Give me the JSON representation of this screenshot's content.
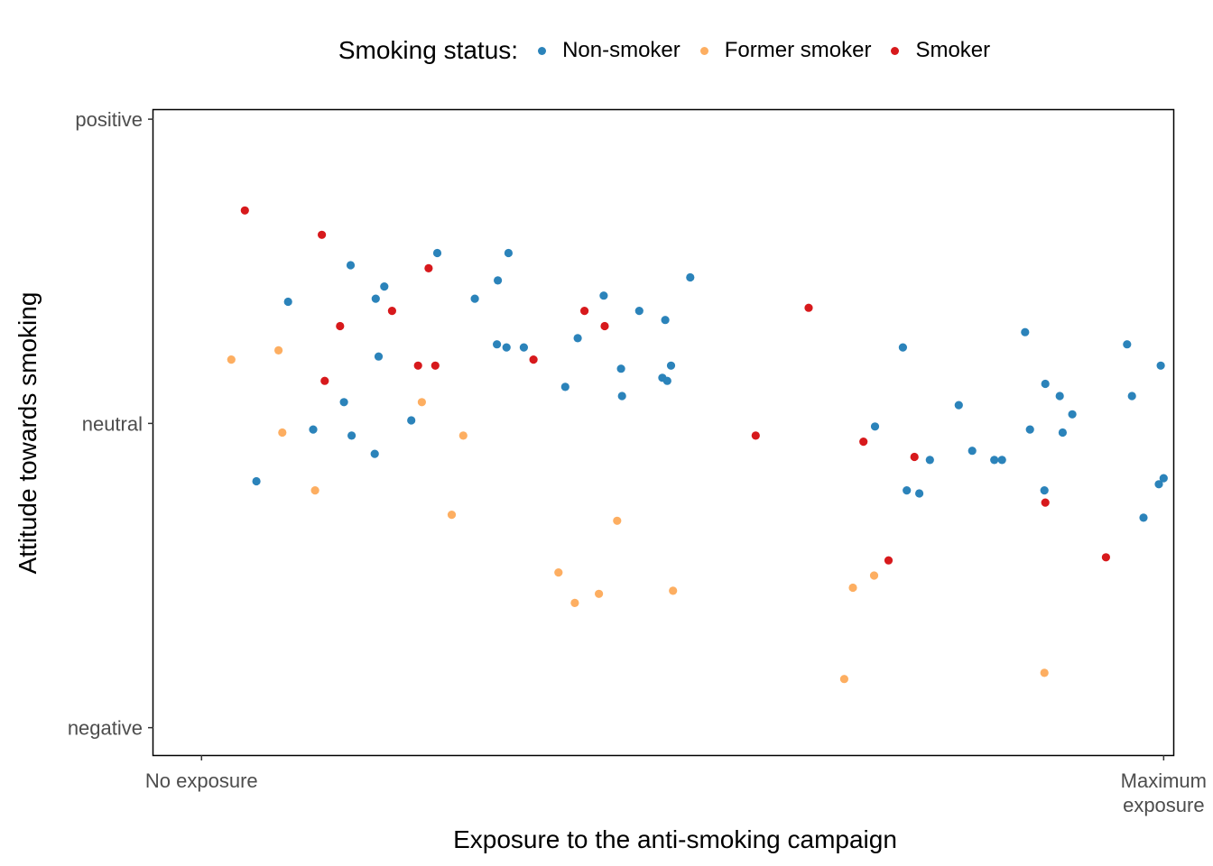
{
  "legend": {
    "title": "Smoking status:",
    "items": [
      {
        "label": "Non-smoker",
        "color": "#2b83ba"
      },
      {
        "label": "Former smoker",
        "color": "#fdae61"
      },
      {
        "label": "Smoker",
        "color": "#d7191c"
      }
    ]
  },
  "chart_data": {
    "type": "scatter",
    "title": "",
    "xlabel": "Exposure to the anti-smoking campaign",
    "ylabel": "Attitude towards smoking",
    "xlim": [
      -0.05,
      1.01
    ],
    "ylim": [
      -0.09,
      2.03
    ],
    "x_ticks": [
      {
        "value": 0,
        "label": "No exposure"
      },
      {
        "value": 1,
        "label": "Maximum\nexposure"
      }
    ],
    "y_ticks": [
      {
        "value": 0,
        "label": "negative"
      },
      {
        "value": 1,
        "label": "neutral"
      },
      {
        "value": 2,
        "label": "positive"
      }
    ],
    "grid": false,
    "legend_position": "top",
    "series": [
      {
        "name": "Non-smoker",
        "color": "#2b83ba",
        "points": [
          [
            0.057,
            0.81
          ],
          [
            0.09,
            1.4
          ],
          [
            0.116,
            0.98
          ],
          [
            0.148,
            1.07
          ],
          [
            0.155,
            1.52
          ],
          [
            0.156,
            0.96
          ],
          [
            0.18,
            0.9
          ],
          [
            0.181,
            1.41
          ],
          [
            0.184,
            1.22
          ],
          [
            0.19,
            1.45
          ],
          [
            0.218,
            1.01
          ],
          [
            0.245,
            1.56
          ],
          [
            0.284,
            1.41
          ],
          [
            0.307,
            1.26
          ],
          [
            0.308,
            1.47
          ],
          [
            0.317,
            1.25
          ],
          [
            0.319,
            1.56
          ],
          [
            0.335,
            1.25
          ],
          [
            0.378,
            1.12
          ],
          [
            0.391,
            1.28
          ],
          [
            0.418,
            1.42
          ],
          [
            0.436,
            1.18
          ],
          [
            0.437,
            1.09
          ],
          [
            0.455,
            1.37
          ],
          [
            0.479,
            1.15
          ],
          [
            0.482,
            1.34
          ],
          [
            0.484,
            1.14
          ],
          [
            0.488,
            1.19
          ],
          [
            0.508,
            1.48
          ],
          [
            0.7,
            0.99
          ],
          [
            0.729,
            1.25
          ],
          [
            0.733,
            0.78
          ],
          [
            0.746,
            0.77
          ],
          [
            0.757,
            0.88
          ],
          [
            0.787,
            1.06
          ],
          [
            0.801,
            0.91
          ],
          [
            0.824,
            0.88
          ],
          [
            0.832,
            0.88
          ],
          [
            0.856,
            1.3
          ],
          [
            0.861,
            0.98
          ],
          [
            0.876,
            0.78
          ],
          [
            0.877,
            1.13
          ],
          [
            0.892,
            1.09
          ],
          [
            0.895,
            0.97
          ],
          [
            0.905,
            1.03
          ],
          [
            0.962,
            1.26
          ],
          [
            0.967,
            1.09
          ],
          [
            0.979,
            0.69
          ],
          [
            0.995,
            0.8
          ],
          [
            0.997,
            1.19
          ],
          [
            1.0,
            0.82
          ]
        ]
      },
      {
        "name": "Former smoker",
        "color": "#fdae61",
        "points": [
          [
            0.031,
            1.21
          ],
          [
            0.08,
            1.24
          ],
          [
            0.084,
            0.97
          ],
          [
            0.118,
            0.78
          ],
          [
            0.229,
            1.07
          ],
          [
            0.26,
            0.7
          ],
          [
            0.272,
            0.96
          ],
          [
            0.371,
            0.51
          ],
          [
            0.388,
            0.41
          ],
          [
            0.413,
            0.44
          ],
          [
            0.432,
            0.68
          ],
          [
            0.49,
            0.45
          ],
          [
            0.668,
            0.16
          ],
          [
            0.677,
            0.46
          ],
          [
            0.699,
            0.5
          ],
          [
            0.876,
            0.18
          ]
        ]
      },
      {
        "name": "Smoker",
        "color": "#d7191c",
        "points": [
          [
            0.045,
            1.7
          ],
          [
            0.125,
            1.62
          ],
          [
            0.128,
            1.14
          ],
          [
            0.144,
            1.32
          ],
          [
            0.198,
            1.37
          ],
          [
            0.225,
            1.19
          ],
          [
            0.236,
            1.51
          ],
          [
            0.243,
            1.19
          ],
          [
            0.345,
            1.21
          ],
          [
            0.398,
            1.37
          ],
          [
            0.419,
            1.32
          ],
          [
            0.576,
            0.96
          ],
          [
            0.631,
            1.38
          ],
          [
            0.688,
            0.94
          ],
          [
            0.714,
            0.55
          ],
          [
            0.741,
            0.89
          ],
          [
            0.877,
            0.74
          ],
          [
            0.94,
            0.56
          ]
        ]
      }
    ]
  }
}
